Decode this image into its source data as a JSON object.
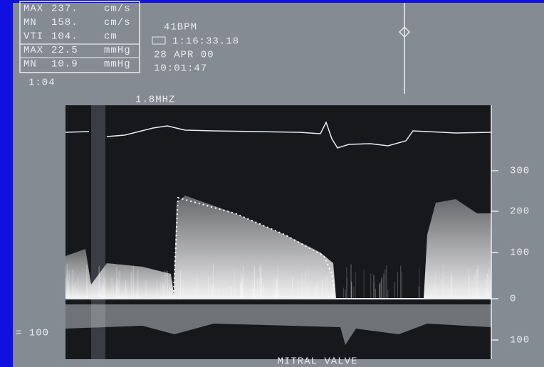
{
  "measure_box": {
    "rows": [
      {
        "label": "MAX",
        "value": "237.",
        "unit": "cm/s"
      },
      {
        "label": "MN",
        "value": "158.",
        "unit": "cm/s"
      },
      {
        "label": "VTI",
        "value": "104.",
        "unit": "cm"
      },
      {
        "label": "MAX",
        "value": "22.5",
        "unit": "mmHg"
      },
      {
        "label": "MN",
        "value": "10.9",
        "unit": "mmHg"
      }
    ]
  },
  "time_left": "1:04",
  "info": {
    "heart_rate": "41BPM",
    "timer": "1:16:33.18",
    "date": "28 APR  00",
    "clock": "10:01:47"
  },
  "frequency": "1.8MHZ",
  "scale": {
    "labels": [
      "300",
      "200",
      "100",
      "0",
      "100"
    ],
    "left_label": "= 100"
  },
  "footer": "MITRAL VALVE"
}
